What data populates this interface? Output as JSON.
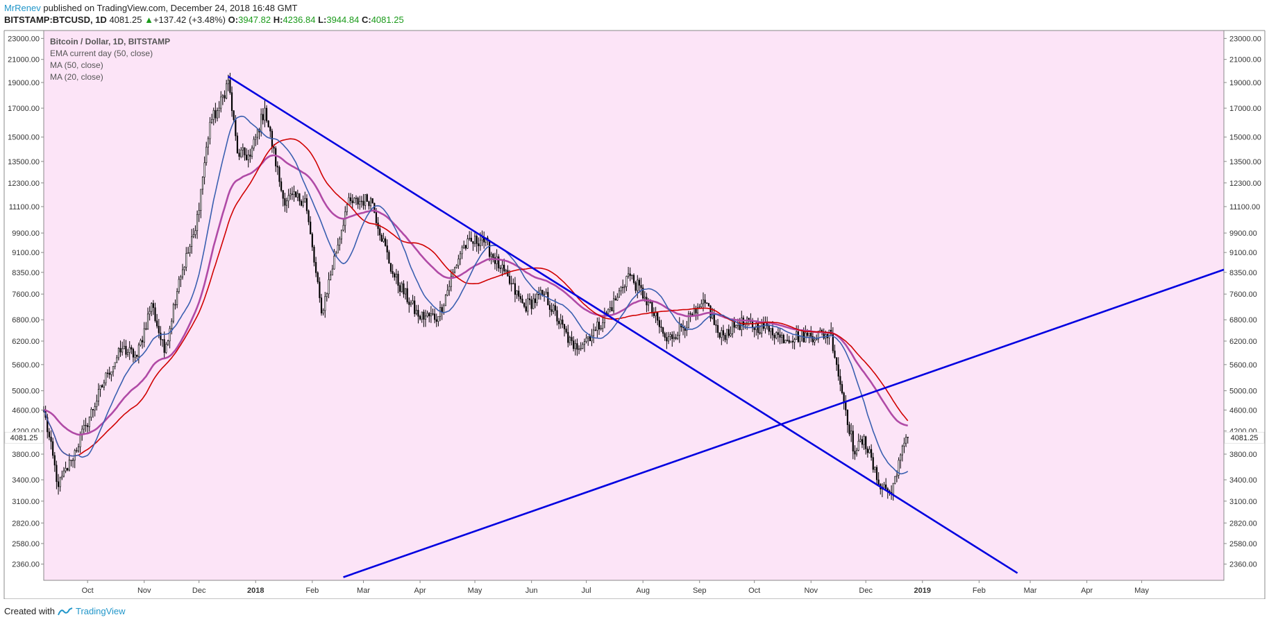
{
  "header": {
    "author": "MrRenev",
    "published": " published on TradingView.com, December 24, 2018 16:48 GMT",
    "symbol": "BITSTAMP:BTCUSD, 1D",
    "last": "4081.25",
    "arrow": "▲",
    "change": "+137.42 (+3.48%)",
    "o_label": "O:",
    "o_val": "3947.82",
    "h_label": "H:",
    "h_val": "4236.84",
    "l_label": "L:",
    "l_val": "3944.84",
    "c_label": "C:",
    "c_val": "4081.25"
  },
  "legend": {
    "title": "Bitcoin / Dollar, 1D, BITSTAMP",
    "items": [
      "EMA current day (50, close)",
      "MA (50, close)",
      "MA (20, close)"
    ]
  },
  "footer": {
    "created": "Created with",
    "brand": "TradingView"
  },
  "colors": {
    "background": "#fce4f7",
    "candle": "#000000",
    "ema50": "#b04aa6",
    "ma50": "#d00000",
    "ma20": "#3a5fb0",
    "trendline": "#0000e0",
    "price_tag_bg": "#ffffff"
  },
  "chart_data": {
    "type": "candlestick",
    "symbol": "BITSTAMP:BTCUSD",
    "timeframe": "1D",
    "y_scale": "log",
    "ylim": [
      2200,
      23800
    ],
    "y_ticks": [
      2360,
      2580,
      2820,
      3100,
      3400,
      3800,
      4200,
      4600,
      5000,
      5600,
      6200,
      6800,
      7600,
      8350,
      9100,
      9900,
      11100,
      12300,
      13500,
      15000,
      17000,
      19000,
      21000,
      23000
    ],
    "y_tick_labels": [
      "2360.00",
      "2580.00",
      "2820.00",
      "3100.00",
      "3400.00",
      "3800.00",
      "4200.00",
      "4600.00",
      "5000.00",
      "5600.00",
      "6200.00",
      "6800.00",
      "7600.00",
      "8350.00",
      "9100.00",
      "9900.00",
      "11100.00",
      "12300.00",
      "13500.00",
      "15000.00",
      "17000.00",
      "19000.00",
      "21000.00",
      "23000.00"
    ],
    "x_range": [
      "2017-09-07",
      "2019-06-15"
    ],
    "x_ticks": [
      {
        "date": "2017-10-01",
        "label": "Oct"
      },
      {
        "date": "2017-11-01",
        "label": "Nov"
      },
      {
        "date": "2017-12-01",
        "label": "Dec"
      },
      {
        "date": "2018-01-01",
        "label": "2018",
        "bold": true
      },
      {
        "date": "2018-02-01",
        "label": "Feb"
      },
      {
        "date": "2018-03-01",
        "label": "Mar"
      },
      {
        "date": "2018-04-01",
        "label": "Apr"
      },
      {
        "date": "2018-05-01",
        "label": "May"
      },
      {
        "date": "2018-06-01",
        "label": "Jun"
      },
      {
        "date": "2018-07-01",
        "label": "Jul"
      },
      {
        "date": "2018-08-01",
        "label": "Aug"
      },
      {
        "date": "2018-09-01",
        "label": "Sep"
      },
      {
        "date": "2018-10-01",
        "label": "Oct"
      },
      {
        "date": "2018-11-01",
        "label": "Nov"
      },
      {
        "date": "2018-12-01",
        "label": "Dec"
      },
      {
        "date": "2019-01-01",
        "label": "2019",
        "bold": true
      },
      {
        "date": "2019-02-01",
        "label": "Feb"
      },
      {
        "date": "2019-03-01",
        "label": "Mar"
      },
      {
        "date": "2019-04-01",
        "label": "Apr"
      },
      {
        "date": "2019-05-01",
        "label": "May"
      }
    ],
    "price_anchors": [
      {
        "date": "2017-09-07",
        "close": 4600
      },
      {
        "date": "2017-09-15",
        "close": 3300
      },
      {
        "date": "2017-09-22",
        "close": 3700
      },
      {
        "date": "2017-09-30",
        "close": 4300
      },
      {
        "date": "2017-10-12",
        "close": 5400
      },
      {
        "date": "2017-10-20",
        "close": 6000
      },
      {
        "date": "2017-10-28",
        "close": 5800
      },
      {
        "date": "2017-11-05",
        "close": 7300
      },
      {
        "date": "2017-11-12",
        "close": 5900
      },
      {
        "date": "2017-11-20",
        "close": 8100
      },
      {
        "date": "2017-11-29",
        "close": 10000
      },
      {
        "date": "2017-12-07",
        "close": 16000
      },
      {
        "date": "2017-12-12",
        "close": 17000
      },
      {
        "date": "2017-12-17",
        "close": 19200
      },
      {
        "date": "2017-12-22",
        "close": 14000
      },
      {
        "date": "2017-12-29",
        "close": 13800
      },
      {
        "date": "2018-01-06",
        "close": 17000
      },
      {
        "date": "2018-01-16",
        "close": 11500
      },
      {
        "date": "2018-01-28",
        "close": 11500
      },
      {
        "date": "2018-02-06",
        "close": 7000
      },
      {
        "date": "2018-02-20",
        "close": 11200
      },
      {
        "date": "2018-03-05",
        "close": 11500
      },
      {
        "date": "2018-03-17",
        "close": 8300
      },
      {
        "date": "2018-03-31",
        "close": 6900
      },
      {
        "date": "2018-04-11",
        "close": 6900
      },
      {
        "date": "2018-04-24",
        "close": 9300
      },
      {
        "date": "2018-05-05",
        "close": 9700
      },
      {
        "date": "2018-05-15",
        "close": 8500
      },
      {
        "date": "2018-05-28",
        "close": 7200
      },
      {
        "date": "2018-06-08",
        "close": 7600
      },
      {
        "date": "2018-06-24",
        "close": 6000
      },
      {
        "date": "2018-07-06",
        "close": 6500
      },
      {
        "date": "2018-07-17",
        "close": 7400
      },
      {
        "date": "2018-07-24",
        "close": 8300
      },
      {
        "date": "2018-08-02",
        "close": 7500
      },
      {
        "date": "2018-08-14",
        "close": 6200
      },
      {
        "date": "2018-08-30",
        "close": 7000
      },
      {
        "date": "2018-09-05",
        "close": 7300
      },
      {
        "date": "2018-09-12",
        "close": 6300
      },
      {
        "date": "2018-09-22",
        "close": 6700
      },
      {
        "date": "2018-10-10",
        "close": 6550
      },
      {
        "date": "2018-10-15",
        "close": 6300
      },
      {
        "date": "2018-10-30",
        "close": 6350
      },
      {
        "date": "2018-11-12",
        "close": 6400
      },
      {
        "date": "2018-11-15",
        "close": 5600
      },
      {
        "date": "2018-11-20",
        "close": 4600
      },
      {
        "date": "2018-11-25",
        "close": 3800
      },
      {
        "date": "2018-11-30",
        "close": 4100
      },
      {
        "date": "2018-12-07",
        "close": 3400
      },
      {
        "date": "2018-12-15",
        "close": 3200
      },
      {
        "date": "2018-12-19",
        "close": 3700
      },
      {
        "date": "2018-12-24",
        "close": 4081.25
      }
    ],
    "last_price": 4081.25,
    "last_price_label": "4081.25",
    "series": [
      {
        "key": "ema50",
        "color_key": "ema50",
        "period": 50,
        "kind": "ema"
      },
      {
        "key": "ma50",
        "color_key": "ma50",
        "period": 50,
        "kind": "sma"
      },
      {
        "key": "ma20",
        "color_key": "ma20",
        "period": 20,
        "kind": "sma"
      }
    ],
    "trendlines": [
      {
        "from": {
          "date": "2017-12-17",
          "price": 19500
        },
        "to": {
          "date": "2019-02-22",
          "price": 2270
        }
      },
      {
        "from": {
          "date": "2018-02-18",
          "price": 2230
        },
        "to": {
          "date": "2019-06-15",
          "price": 8450
        }
      }
    ]
  }
}
